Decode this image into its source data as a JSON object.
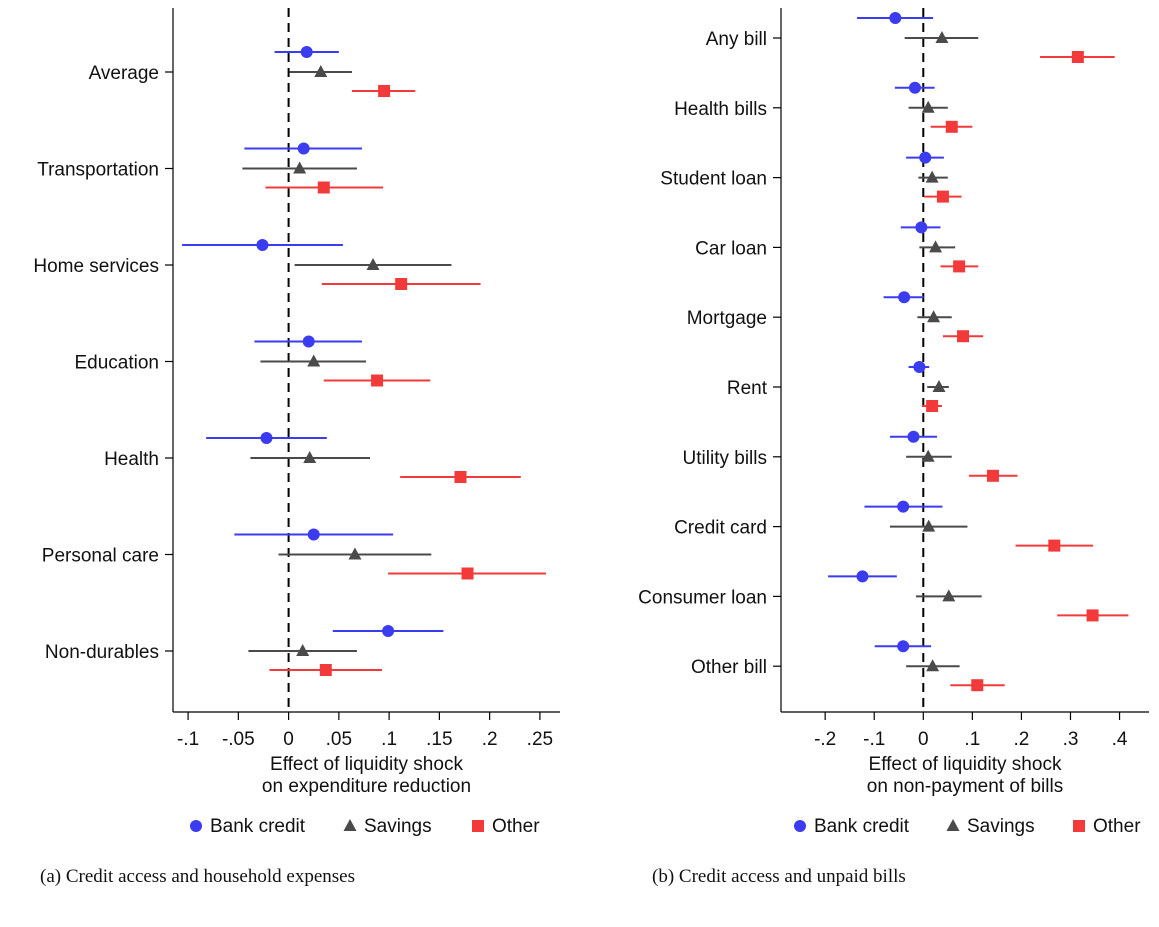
{
  "chart_data": [
    {
      "type": "scatter",
      "subtype": "coefficient-plot",
      "categories": [
        "Average",
        "Transportation",
        "Home services",
        "Education",
        "Health",
        "Personal care",
        "Non-durables"
      ],
      "xlabel": [
        "Effect of liquidity shock",
        "on expenditure reduction"
      ],
      "xlim": [
        -0.115,
        0.27
      ],
      "xticks": [
        -0.1,
        -0.05,
        0,
        0.05,
        0.1,
        0.15,
        0.2,
        0.25
      ],
      "xtick_labels": [
        "-.1",
        "-.05",
        "0",
        ".05",
        ".1",
        ".15",
        ".2",
        ".25"
      ],
      "reference_line": 0,
      "legend": [
        "Bank credit",
        "Savings",
        "Other"
      ],
      "legend_position": "bottom",
      "series": [
        {
          "name": "Bank credit",
          "marker": "circle",
          "color": "#3b3bf0",
          "values": [
            0.018,
            0.015,
            -0.026,
            0.02,
            -0.022,
            0.025,
            0.099
          ],
          "ci_low": [
            -0.014,
            -0.044,
            -0.106,
            -0.034,
            -0.082,
            -0.054,
            0.044
          ],
          "ci_high": [
            0.05,
            0.073,
            0.054,
            0.073,
            0.038,
            0.104,
            0.154
          ]
        },
        {
          "name": "Savings",
          "marker": "triangle",
          "color": "#4a4a4a",
          "values": [
            0.032,
            0.011,
            0.084,
            0.025,
            0.021,
            0.066,
            0.014
          ],
          "ci_low": [
            0.001,
            -0.046,
            0.006,
            -0.028,
            -0.038,
            -0.01,
            -0.04
          ],
          "ci_high": [
            0.063,
            0.068,
            0.162,
            0.077,
            0.081,
            0.142,
            0.068
          ]
        },
        {
          "name": "Other",
          "marker": "square",
          "color": "#f23a3a",
          "values": [
            0.095,
            0.035,
            0.112,
            0.088,
            0.171,
            0.178,
            0.037
          ],
          "ci_low": [
            0.063,
            -0.023,
            0.033,
            0.035,
            0.111,
            0.099,
            -0.019
          ],
          "ci_high": [
            0.126,
            0.094,
            0.191,
            0.141,
            0.231,
            0.256,
            0.093
          ]
        }
      ]
    },
    {
      "type": "scatter",
      "subtype": "coefficient-plot",
      "categories": [
        "Any bill",
        "Health bills",
        "Student loan",
        "Car loan",
        "Mortgage",
        "Rent",
        "Utility bills",
        "Credit card",
        "Consumer loan",
        "Other bill"
      ],
      "xlabel": [
        "Effect of liquidity shock",
        "on non-payment of bills"
      ],
      "xlim": [
        -0.29,
        0.46
      ],
      "xticks": [
        -0.2,
        -0.1,
        0,
        0.1,
        0.2,
        0.3,
        0.4
      ],
      "xtick_labels": [
        "-.2",
        "-.1",
        "0",
        ".1",
        ".2",
        ".3",
        ".4"
      ],
      "reference_line": 0,
      "legend": [
        "Bank credit",
        "Savings",
        "Other"
      ],
      "legend_position": "bottom",
      "series": [
        {
          "name": "Bank credit",
          "marker": "circle",
          "color": "#3b3bf0",
          "values": [
            -0.057,
            -0.017,
            0.004,
            -0.004,
            -0.039,
            -0.008,
            -0.02,
            -0.041,
            -0.124,
            -0.041
          ],
          "ci_low": [
            -0.135,
            -0.058,
            -0.035,
            -0.046,
            -0.081,
            -0.03,
            -0.068,
            -0.12,
            -0.194,
            -0.099
          ],
          "ci_high": [
            0.02,
            0.023,
            0.042,
            0.035,
            0.001,
            0.012,
            0.028,
            0.039,
            -0.054,
            0.016
          ]
        },
        {
          "name": "Savings",
          "marker": "triangle",
          "color": "#4a4a4a",
          "values": [
            0.038,
            0.01,
            0.018,
            0.025,
            0.021,
            0.032,
            0.01,
            0.011,
            0.052,
            0.019
          ],
          "ci_low": [
            -0.038,
            -0.03,
            -0.01,
            -0.008,
            -0.012,
            0.008,
            -0.035,
            -0.068,
            -0.015,
            -0.035
          ],
          "ci_high": [
            0.112,
            0.05,
            0.05,
            0.065,
            0.058,
            0.052,
            0.058,
            0.09,
            0.119,
            0.074
          ]
        },
        {
          "name": "Other",
          "marker": "square",
          "color": "#f23a3a",
          "values": [
            0.315,
            0.058,
            0.04,
            0.073,
            0.081,
            0.018,
            0.142,
            0.267,
            0.345,
            0.11
          ],
          "ci_low": [
            0.238,
            0.015,
            0.002,
            0.035,
            0.04,
            -0.003,
            0.093,
            0.188,
            0.273,
            0.055
          ],
          "ci_high": [
            0.39,
            0.1,
            0.078,
            0.112,
            0.122,
            0.038,
            0.192,
            0.346,
            0.418,
            0.166
          ]
        }
      ]
    }
  ],
  "captions": [
    "(a)  Credit access and household expenses",
    "(b)  Credit access and unpaid bills"
  ]
}
